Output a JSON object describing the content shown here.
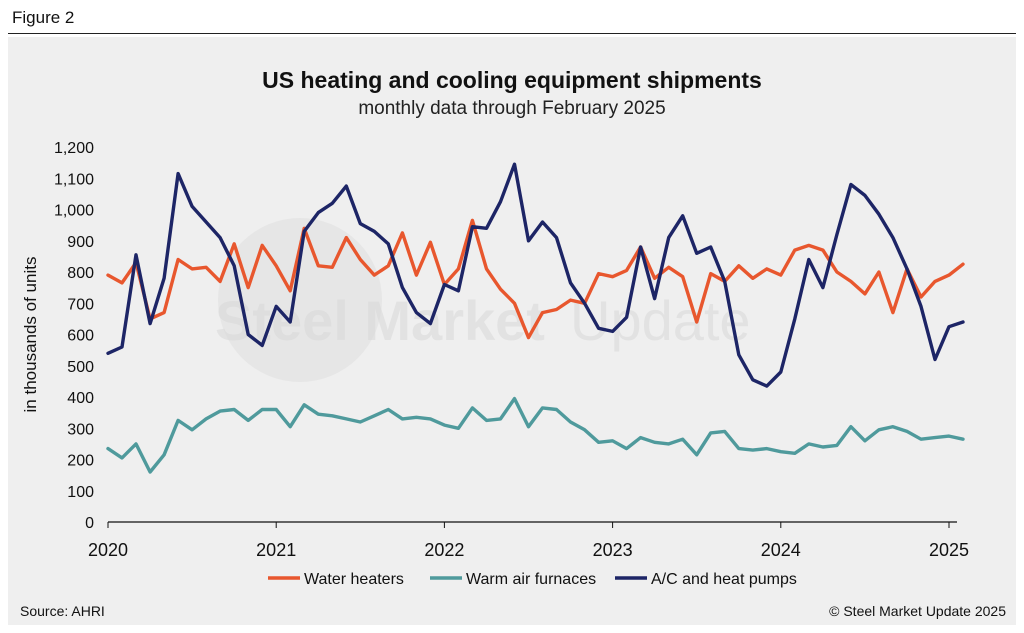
{
  "header": {
    "figure_label": "Figure 2"
  },
  "footer": {
    "source": "Source: AHRI",
    "copyright": "© Steel Market Update 2025"
  },
  "watermark": {
    "text_bold": "Steel Market",
    "text_light": "Update"
  },
  "colors": {
    "water_heaters": "#e8572e",
    "warm_air_furnaces": "#4f9a9c",
    "ac_heat_pumps": "#1d2566"
  },
  "chart_data": {
    "type": "line",
    "title": "US heating and cooling equipment shipments",
    "subtitle": "monthly data through February 2025",
    "ylabel": "in thousands of units",
    "xlabel": "",
    "ylim": [
      0,
      1200
    ],
    "yticks": [
      0,
      100,
      200,
      300,
      400,
      500,
      600,
      700,
      800,
      900,
      1000,
      1100,
      1200
    ],
    "ytick_labels": [
      "0",
      "100",
      "200",
      "300",
      "400",
      "500",
      "600",
      "700",
      "800",
      "900",
      "1,000",
      "1,100",
      "1,200"
    ],
    "xticks": [
      "2020",
      "2021",
      "2022",
      "2023",
      "2024",
      "2025"
    ],
    "x_start": "2020-01",
    "x_end": "2025-02",
    "grid": false,
    "legend_position": "bottom",
    "series": [
      {
        "name": "Water heaters",
        "color": "#e8572e",
        "values": [
          790,
          765,
          830,
          650,
          670,
          840,
          810,
          815,
          770,
          890,
          750,
          885,
          820,
          740,
          940,
          820,
          815,
          910,
          840,
          790,
          820,
          925,
          790,
          895,
          760,
          810,
          965,
          810,
          745,
          700,
          590,
          670,
          680,
          710,
          700,
          795,
          785,
          805,
          880,
          780,
          815,
          785,
          640,
          795,
          770,
          820,
          780,
          810,
          790,
          870,
          885,
          870,
          800,
          770,
          730,
          800,
          670,
          810,
          720,
          770,
          790,
          825
        ]
      },
      {
        "name": "Warm air furnaces",
        "color": "#4f9a9c",
        "values": [
          235,
          205,
          250,
          160,
          215,
          325,
          295,
          330,
          355,
          360,
          325,
          360,
          360,
          305,
          375,
          345,
          340,
          330,
          320,
          340,
          360,
          330,
          335,
          330,
          310,
          300,
          365,
          325,
          330,
          395,
          305,
          365,
          360,
          320,
          295,
          255,
          260,
          235,
          270,
          255,
          250,
          265,
          215,
          285,
          290,
          235,
          230,
          235,
          225,
          220,
          250,
          240,
          245,
          305,
          260,
          295,
          305,
          290,
          265,
          270,
          275,
          265
        ]
      },
      {
        "name": "A/C and heat pumps",
        "color": "#1d2566",
        "values": [
          540,
          560,
          855,
          635,
          780,
          1115,
          1010,
          960,
          910,
          820,
          600,
          565,
          690,
          640,
          930,
          990,
          1020,
          1075,
          955,
          930,
          890,
          750,
          670,
          635,
          760,
          740,
          945,
          940,
          1025,
          1145,
          900,
          960,
          910,
          765,
          700,
          620,
          610,
          655,
          880,
          715,
          910,
          980,
          860,
          880,
          770,
          535,
          455,
          435,
          480,
          650,
          840,
          750,
          920,
          1080,
          1045,
          985,
          910,
          810,
          690,
          520,
          625,
          640
        ]
      }
    ]
  }
}
